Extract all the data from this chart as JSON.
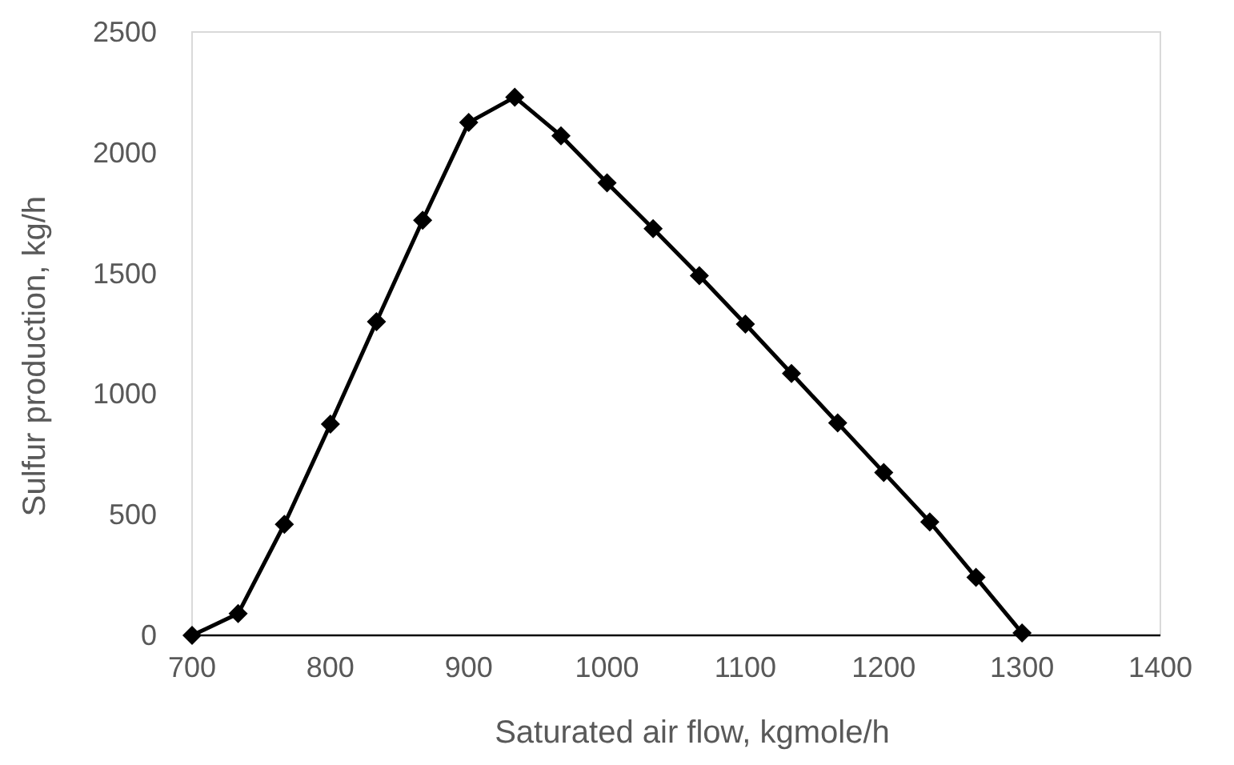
{
  "chart_data": {
    "type": "line",
    "xlabel": "Saturated air flow, kgmole/h",
    "ylabel": "Sulfur production, kg/h",
    "x": [
      700,
      733.3,
      766.7,
      800,
      833.3,
      866.7,
      900,
      933.3,
      966.7,
      1000,
      1033.3,
      1066.7,
      1100,
      1133.3,
      1166.7,
      1200,
      1233.3,
      1266.7,
      1300
    ],
    "series": [
      {
        "color": "#000000",
        "values": [
          0,
          90,
          460,
          875,
          1300,
          1720,
          2125,
          2230,
          2070,
          1875,
          1685,
          1490,
          1290,
          1085,
          880,
          675,
          470,
          240,
          10
        ]
      }
    ],
    "xlim": [
      700,
      1400
    ],
    "xticks": [
      700,
      800,
      900,
      1000,
      1100,
      1200,
      1300,
      1400
    ],
    "ylim": [
      0,
      2500
    ],
    "yticks": [
      0,
      500,
      1000,
      1500,
      2000,
      2500
    ],
    "grid": false,
    "marker": "diamond",
    "line_style": "solid"
  }
}
